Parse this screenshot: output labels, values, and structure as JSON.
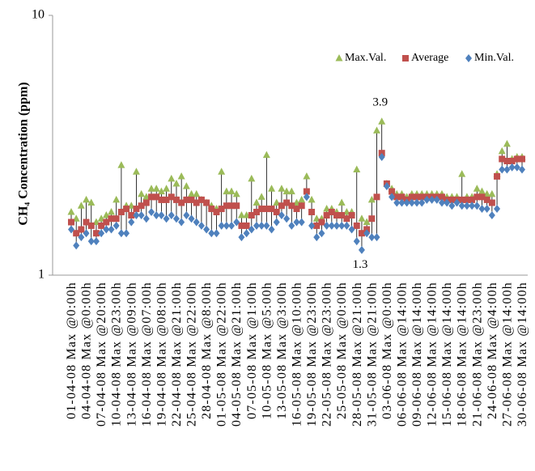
{
  "chart_data": {
    "type": "range-marker",
    "y_label": "CH₄ Concentration (ppm)",
    "log_scale": true,
    "ylim": [
      1,
      10
    ],
    "yticks": [
      1,
      10
    ],
    "grid": false,
    "legend": "top-right",
    "annotations": [
      "3.9",
      "1.3"
    ],
    "categories": [
      "01-04-08 Max @0:00h",
      null,
      null,
      "04-04-08 Max @0:00h",
      null,
      null,
      "07-04-08 Max @20:00h",
      null,
      null,
      "10-04-08 Max @23:00h",
      null,
      null,
      "13-04-08 Max @09:00h",
      null,
      null,
      "16-04-08 Max @07:00h",
      null,
      null,
      "19-04-08 Max @08:00h",
      null,
      null,
      "22-04-08 Max @21:00h",
      null,
      null,
      "25-04-08 Max @22:00h",
      null,
      null,
      "28-04-08 Max @8:00h",
      null,
      null,
      "01-05-08 Max @22:00h",
      null,
      null,
      "04-05-08 Max @21:00h",
      null,
      null,
      "07-05-08 Max @1:00h",
      null,
      null,
      "10-05-08 Max @5:00h",
      null,
      null,
      "13-05-08 Max @3:00h",
      null,
      null,
      "16-05-08 Max @10:00h",
      null,
      null,
      "19-05-08 Max @23:00h",
      null,
      null,
      "22-05-08 Max @23:00h",
      null,
      null,
      "25-05-08 Max @0:00h",
      null,
      null,
      "28-05-08 Max @21:00h",
      null,
      null,
      "31-05-08 Max @21:00h",
      null,
      null,
      "03-06-08 Max @0:00h",
      null,
      null,
      "06-06-08 Max @14:00h",
      null,
      null,
      "09-06-08 Max @14:00h",
      null,
      null,
      "12-06-08 Max @14:00h",
      null,
      null,
      "15-06-08 Max @14:00h",
      null,
      null,
      "18-06-08 Max @14:00h",
      null,
      null,
      "21-06-08 Max @23:00h",
      null,
      null,
      "24-06-08 Max @4:00h",
      null,
      null,
      "27-06-08 Max @14:00h",
      null,
      null,
      "30-06-08 Max @14:00h"
    ],
    "series": [
      {
        "name": "Max.Val.",
        "color": "#9bbb59",
        "marker": "triangle",
        "values": [
          1.75,
          1.65,
          1.85,
          1.95,
          1.9,
          1.6,
          1.65,
          1.7,
          1.75,
          1.95,
          2.65,
          1.85,
          1.85,
          2.5,
          2.05,
          2.0,
          2.15,
          2.15,
          2.1,
          2.15,
          2.35,
          2.25,
          2.4,
          2.2,
          2.05,
          2.05,
          1.95,
          1.9,
          1.85,
          1.8,
          2.5,
          2.1,
          2.1,
          2.05,
          1.7,
          1.7,
          2.35,
          1.9,
          2.0,
          2.9,
          2.15,
          1.9,
          2.15,
          2.1,
          2.1,
          1.9,
          1.95,
          2.4,
          1.95,
          1.65,
          1.65,
          1.8,
          1.8,
          1.75,
          1.9,
          1.75,
          1.75,
          2.55,
          1.65,
          1.6,
          1.95,
          3.6,
          3.9,
          2.25,
          2.15,
          2.05,
          2.05,
          2.0,
          2.05,
          2.05,
          2.05,
          2.05,
          2.05,
          2.05,
          2.05,
          2.0,
          2.0,
          2.0,
          2.45,
          2.0,
          2.0,
          2.15,
          2.1,
          2.05,
          2.05,
          2.45,
          3.0,
          3.2,
          2.8,
          2.85,
          2.85
        ]
      },
      {
        "name": "Average",
        "color": "#c0504d",
        "marker": "square",
        "values": [
          1.6,
          1.45,
          1.5,
          1.6,
          1.55,
          1.45,
          1.55,
          1.6,
          1.65,
          1.65,
          1.75,
          1.8,
          1.7,
          1.8,
          1.85,
          1.9,
          2.0,
          2.0,
          1.95,
          1.95,
          2.0,
          1.95,
          1.9,
          1.95,
          1.95,
          1.9,
          1.95,
          1.9,
          1.8,
          1.75,
          1.8,
          1.85,
          1.85,
          1.85,
          1.55,
          1.55,
          1.7,
          1.75,
          1.8,
          1.8,
          1.8,
          1.75,
          1.85,
          1.9,
          1.85,
          1.8,
          1.85,
          2.1,
          1.75,
          1.55,
          1.6,
          1.7,
          1.75,
          1.7,
          1.7,
          1.65,
          1.7,
          1.55,
          1.45,
          1.5,
          1.65,
          2.0,
          2.95,
          2.25,
          2.1,
          2.0,
          2.0,
          1.95,
          2.0,
          2.0,
          2.0,
          2.0,
          2.0,
          2.0,
          2.0,
          1.95,
          1.95,
          1.95,
          1.95,
          1.95,
          1.95,
          2.0,
          2.0,
          1.95,
          1.9,
          2.4,
          2.8,
          2.75,
          2.75,
          2.8,
          2.8
        ]
      },
      {
        "name": "Min.Val.",
        "color": "#4f81bd",
        "marker": "diamond",
        "values": [
          1.5,
          1.3,
          1.4,
          1.45,
          1.35,
          1.35,
          1.45,
          1.5,
          1.5,
          1.55,
          1.45,
          1.45,
          1.6,
          1.7,
          1.7,
          1.65,
          1.75,
          1.7,
          1.7,
          1.65,
          1.7,
          1.65,
          1.6,
          1.7,
          1.65,
          1.6,
          1.55,
          1.5,
          1.45,
          1.45,
          1.55,
          1.55,
          1.55,
          1.6,
          1.4,
          1.45,
          1.5,
          1.55,
          1.55,
          1.55,
          1.5,
          1.6,
          1.7,
          1.65,
          1.55,
          1.6,
          1.6,
          2.0,
          1.55,
          1.4,
          1.45,
          1.55,
          1.55,
          1.55,
          1.55,
          1.55,
          1.5,
          1.35,
          1.25,
          1.45,
          1.4,
          1.4,
          2.85,
          2.2,
          2.0,
          1.9,
          1.9,
          1.9,
          1.9,
          1.9,
          1.9,
          1.95,
          1.95,
          1.95,
          1.9,
          1.9,
          1.85,
          1.9,
          1.85,
          1.85,
          1.85,
          1.85,
          1.8,
          1.8,
          1.7,
          1.8,
          2.55,
          2.55,
          2.6,
          2.6,
          2.55
        ]
      }
    ]
  }
}
